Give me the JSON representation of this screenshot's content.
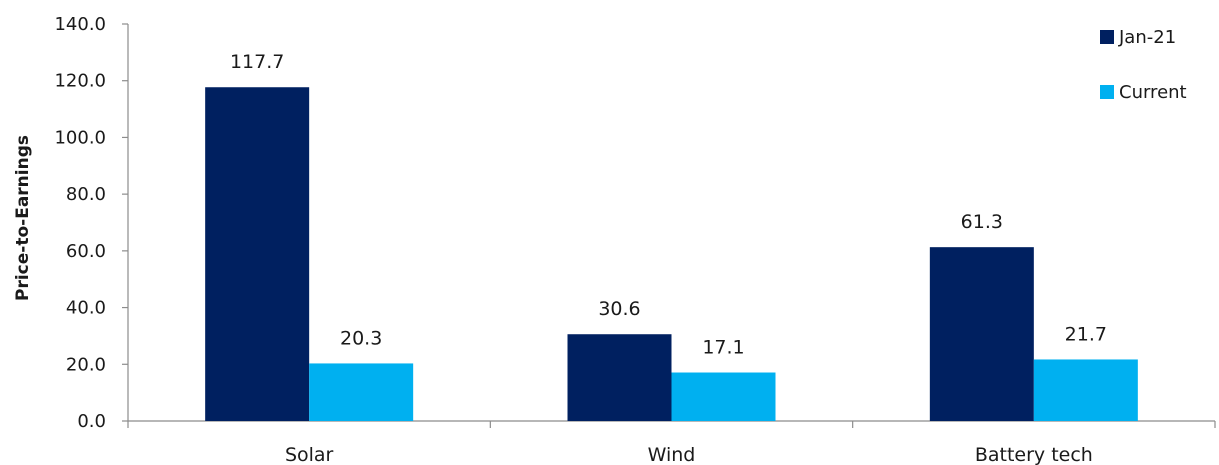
{
  "chart_data": {
    "type": "bar",
    "categories": [
      "Solar",
      "Wind",
      "Battery tech"
    ],
    "series": [
      {
        "name": "Jan-21",
        "values": [
          117.7,
          30.6,
          61.3
        ],
        "color": "#002060"
      },
      {
        "name": "Current",
        "values": [
          20.3,
          17.1,
          21.7
        ],
        "color": "#00B0F0"
      }
    ],
    "data_labels": [
      [
        "117.7",
        "30.6",
        "61.3"
      ],
      [
        "20.3",
        "17.1",
        "21.7"
      ]
    ],
    "ylabel": "Price-to-Earnings",
    "xlabel": "",
    "ylim": [
      0,
      140
    ],
    "yticks": [
      "0.0",
      "20.0",
      "40.0",
      "60.0",
      "80.0",
      "100.0",
      "120.0",
      "140.0"
    ],
    "grid": false,
    "legend_position": "top-right"
  }
}
